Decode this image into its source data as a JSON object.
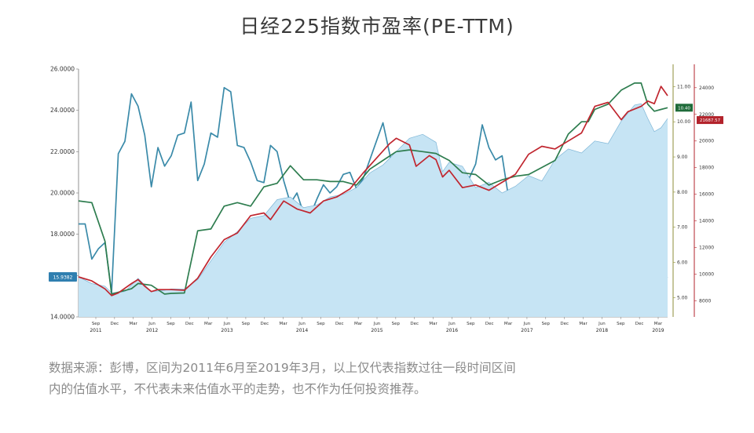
{
  "title": "日经225指数市盈率(PE-TTM)",
  "caption_lines": [
    "数据来源：彭博，区间为2011年6月至2019年3月，以上仅代表指数过往一段时间区间",
    "内的估值水平，不代表未来估值水平的走势，也不作为任何投资推荐。"
  ],
  "chart_data": {
    "type": "line",
    "grid": false,
    "colors": {
      "area_fill": "#c6e4f4",
      "area_line": "#3d8fbf",
      "pe_line": "#3a8aa9",
      "green_line": "#2e7d4f",
      "red_line": "#c0262f",
      "right_axis_green": "#8e8e3a",
      "right_axis_red": "#b3232c"
    },
    "axes": {
      "left": {
        "ticks": [
          "26.0000",
          "24.0000",
          "22.0000",
          "20.0000",
          "18.0000",
          "16.0000",
          "14.0000"
        ],
        "ylim": [
          14,
          26
        ]
      },
      "right_inner": {
        "ticks": [
          "11.00",
          "10.00",
          "9.00",
          "8.00",
          "7.00",
          "6.00",
          "5.00"
        ],
        "ylim": [
          4.45,
          11.5
        ]
      },
      "right_outer": {
        "ticks": [
          "24000",
          "22000",
          "20000",
          "18000",
          "16000",
          "14000",
          "12000",
          "10000",
          "8000"
        ],
        "ylim": [
          6800,
          25400
        ]
      }
    },
    "x_tick_labels": [
      "Sep",
      "Dec",
      "Mar",
      "Jun",
      "Sep",
      "Dec",
      "Mar",
      "Jun",
      "Sep",
      "Dec",
      "Mar",
      "Jun",
      "Sep",
      "Dec",
      "Mar",
      "Jun",
      "Sep",
      "Dec",
      "Mar",
      "Jun",
      "Sep",
      "Dec",
      "Mar",
      "Jun",
      "Sep",
      "Dec",
      "Mar",
      "Jun",
      "Sep",
      "Dec",
      "Mar"
    ],
    "x_year_labels": [
      {
        "year": "2011",
        "tick": 0
      },
      {
        "year": "2012",
        "tick": 3
      },
      {
        "year": "2013",
        "tick": 7
      },
      {
        "year": "2014",
        "tick": 11
      },
      {
        "year": "2015",
        "tick": 15
      },
      {
        "year": "2016",
        "tick": 19
      },
      {
        "year": "2017",
        "tick": 23
      },
      {
        "year": "2018",
        "tick": 27
      },
      {
        "year": "2019",
        "tick": 30
      }
    ],
    "last_value_labels": {
      "left": "15.9382",
      "green": "10.40",
      "red": "21687.57"
    },
    "series": [
      {
        "key": "pe",
        "axis": "left",
        "style": "line",
        "points": [
          [
            0,
            18.5
          ],
          [
            1,
            18.5
          ],
          [
            2,
            16.8
          ],
          [
            3,
            17.3
          ],
          [
            4,
            17.6
          ],
          [
            5,
            15.2
          ],
          [
            6,
            21.9
          ],
          [
            7,
            22.5
          ],
          [
            8,
            24.8
          ],
          [
            9,
            24.2
          ],
          [
            10,
            22.8
          ],
          [
            11,
            20.3
          ],
          [
            12,
            22.2
          ],
          [
            13,
            21.3
          ],
          [
            14,
            21.8
          ],
          [
            15,
            22.8
          ],
          [
            16,
            22.9
          ],
          [
            17,
            24.4
          ],
          [
            18,
            20.6
          ],
          [
            19,
            21.4
          ],
          [
            20,
            22.9
          ],
          [
            21,
            22.7
          ],
          [
            22,
            25.1
          ],
          [
            23,
            24.9
          ],
          [
            24,
            22.3
          ],
          [
            25,
            22.2
          ],
          [
            26,
            21.5
          ],
          [
            27,
            20.6
          ],
          [
            28,
            20.5
          ],
          [
            29,
            22.3
          ],
          [
            30,
            22.0
          ],
          [
            31,
            20.6
          ],
          [
            32,
            19.5
          ],
          [
            33,
            20.0
          ],
          [
            34,
            19.0
          ],
          [
            35,
            18.9
          ],
          [
            36,
            19.7
          ],
          [
            37,
            20.4
          ],
          [
            38,
            20.0
          ],
          [
            39,
            20.3
          ],
          [
            40,
            20.9
          ],
          [
            41,
            21.0
          ],
          [
            42,
            20.2
          ],
          [
            43,
            20.7
          ],
          [
            44,
            21.6
          ],
          [
            45,
            22.5
          ],
          [
            46,
            23.4
          ],
          [
            47,
            21.9
          ],
          [
            48,
            20.3
          ],
          [
            49,
            18.4
          ],
          [
            50,
            20.5
          ],
          [
            51,
            21.1
          ],
          [
            52,
            20.2
          ],
          [
            53,
            20.6
          ],
          [
            54,
            18.3
          ],
          [
            55,
            20.2
          ],
          [
            56,
            20.4
          ],
          [
            57,
            19.7
          ],
          [
            58,
            20.3
          ],
          [
            59,
            20.7
          ],
          [
            60,
            21.4
          ],
          [
            61,
            23.3
          ],
          [
            62,
            22.2
          ],
          [
            63,
            21.6
          ],
          [
            64,
            21.8
          ],
          [
            65,
            19.7
          ],
          [
            66,
            18.0
          ],
          [
            67,
            18.3
          ],
          [
            68,
            17.8
          ],
          [
            69,
            17.8
          ],
          [
            70,
            17.4
          ],
          [
            71,
            18.5
          ],
          [
            72,
            19.5
          ],
          [
            73,
            16.5
          ],
          [
            74,
            16.7
          ],
          [
            75,
            16.2
          ],
          [
            76,
            16.1
          ],
          [
            77,
            17.1
          ],
          [
            78,
            16.5
          ],
          [
            79,
            16.0
          ],
          [
            80,
            16.2
          ],
          [
            81,
            16.5
          ],
          [
            82,
            16.8
          ],
          [
            83,
            15.4
          ],
          [
            84,
            15.6
          ],
          [
            85,
            15.0
          ],
          [
            86,
            15.6
          ],
          [
            87,
            15.9
          ],
          [
            88,
            15.8
          ],
          [
            89,
            15.9382
          ]
        ]
      },
      {
        "key": "index",
        "axis": "right_outer",
        "style": "area",
        "points": [
          [
            0,
            9800
          ],
          [
            2,
            9300
          ],
          [
            4,
            9100
          ],
          [
            5,
            8600
          ],
          [
            7,
            8700
          ],
          [
            9,
            9700
          ],
          [
            11,
            8700
          ],
          [
            13,
            8800
          ],
          [
            14,
            8900
          ],
          [
            16,
            8900
          ],
          [
            18,
            9600
          ],
          [
            20,
            11000
          ],
          [
            22,
            12400
          ],
          [
            24,
            13200
          ],
          [
            26,
            14200
          ],
          [
            28,
            14400
          ],
          [
            30,
            15600
          ],
          [
            32,
            15800
          ],
          [
            34,
            15000
          ],
          [
            36,
            15200
          ],
          [
            38,
            15800
          ],
          [
            40,
            16000
          ],
          [
            42,
            16500
          ],
          [
            44,
            17600
          ],
          [
            46,
            18200
          ],
          [
            48,
            19200
          ],
          [
            50,
            20200
          ],
          [
            52,
            20500
          ],
          [
            54,
            19900
          ],
          [
            55,
            17700
          ],
          [
            56,
            18400
          ],
          [
            58,
            18100
          ],
          [
            60,
            16500
          ],
          [
            62,
            16900
          ],
          [
            64,
            16100
          ],
          [
            66,
            16600
          ],
          [
            68,
            17400
          ],
          [
            70,
            17000
          ],
          [
            72,
            18600
          ],
          [
            74,
            19400
          ],
          [
            76,
            19100
          ],
          [
            78,
            20000
          ],
          [
            80,
            19800
          ],
          [
            82,
            21500
          ],
          [
            84,
            22700
          ],
          [
            85,
            22800
          ],
          [
            86,
            21700
          ],
          [
            87,
            20700
          ],
          [
            88,
            21000
          ],
          [
            89,
            21687.57
          ]
        ]
      },
      {
        "key": "green",
        "axis": "right_inner",
        "style": "line",
        "points": [
          [
            0,
            7.75
          ],
          [
            2,
            7.7
          ],
          [
            4,
            6.6
          ],
          [
            5,
            5.1
          ],
          [
            6,
            5.15
          ],
          [
            8,
            5.25
          ],
          [
            9,
            5.4
          ],
          [
            11,
            5.35
          ],
          [
            13,
            5.1
          ],
          [
            14,
            5.12
          ],
          [
            16,
            5.13
          ],
          [
            18,
            6.9
          ],
          [
            20,
            6.95
          ],
          [
            22,
            7.6
          ],
          [
            24,
            7.7
          ],
          [
            26,
            7.6
          ],
          [
            28,
            8.15
          ],
          [
            30,
            8.25
          ],
          [
            32,
            8.75
          ],
          [
            34,
            8.35
          ],
          [
            36,
            8.35
          ],
          [
            38,
            8.3
          ],
          [
            40,
            8.3
          ],
          [
            42,
            8.2
          ],
          [
            44,
            8.65
          ],
          [
            46,
            8.9
          ],
          [
            48,
            9.15
          ],
          [
            50,
            9.2
          ],
          [
            52,
            9.15
          ],
          [
            54,
            9.1
          ],
          [
            55,
            9.0
          ],
          [
            56,
            8.9
          ],
          [
            58,
            8.55
          ],
          [
            60,
            8.5
          ],
          [
            62,
            8.2
          ],
          [
            64,
            8.35
          ],
          [
            66,
            8.45
          ],
          [
            68,
            8.5
          ],
          [
            70,
            8.7
          ],
          [
            72,
            8.9
          ],
          [
            74,
            9.65
          ],
          [
            76,
            10.0
          ],
          [
            77,
            10.0
          ],
          [
            78,
            10.35
          ],
          [
            80,
            10.5
          ],
          [
            82,
            10.9
          ],
          [
            84,
            11.1
          ],
          [
            85,
            11.1
          ],
          [
            86,
            10.5
          ],
          [
            87,
            10.3
          ],
          [
            88,
            10.35
          ],
          [
            89,
            10.4
          ]
        ]
      },
      {
        "key": "red",
        "axis": "right_outer",
        "style": "line",
        "points": [
          [
            0,
            9800
          ],
          [
            2,
            9500
          ],
          [
            4,
            8900
          ],
          [
            5,
            8400
          ],
          [
            6,
            8600
          ],
          [
            8,
            9300
          ],
          [
            9,
            9600
          ],
          [
            10,
            9100
          ],
          [
            11,
            8700
          ],
          [
            12,
            8850
          ],
          [
            14,
            8850
          ],
          [
            16,
            8800
          ],
          [
            18,
            9700
          ],
          [
            20,
            11300
          ],
          [
            22,
            12600
          ],
          [
            24,
            13100
          ],
          [
            26,
            14400
          ],
          [
            28,
            14600
          ],
          [
            29,
            14100
          ],
          [
            31,
            15500
          ],
          [
            33,
            14900
          ],
          [
            35,
            14600
          ],
          [
            37,
            15500
          ],
          [
            39,
            15800
          ],
          [
            41,
            16400
          ],
          [
            43,
            17600
          ],
          [
            45,
            18700
          ],
          [
            47,
            19800
          ],
          [
            48,
            20200
          ],
          [
            50,
            19700
          ],
          [
            51,
            18100
          ],
          [
            53,
            18900
          ],
          [
            54,
            18600
          ],
          [
            55,
            17300
          ],
          [
            56,
            17800
          ],
          [
            58,
            16500
          ],
          [
            60,
            16700
          ],
          [
            62,
            16300
          ],
          [
            64,
            16900
          ],
          [
            66,
            17500
          ],
          [
            68,
            19000
          ],
          [
            70,
            19600
          ],
          [
            72,
            19400
          ],
          [
            74,
            20000
          ],
          [
            76,
            20600
          ],
          [
            78,
            22600
          ],
          [
            80,
            22900
          ],
          [
            82,
            21600
          ],
          [
            83,
            22200
          ],
          [
            85,
            22600
          ],
          [
            86,
            23000
          ],
          [
            87,
            22800
          ],
          [
            88,
            24100
          ],
          [
            89,
            23400
          ]
        ]
      }
    ]
  }
}
